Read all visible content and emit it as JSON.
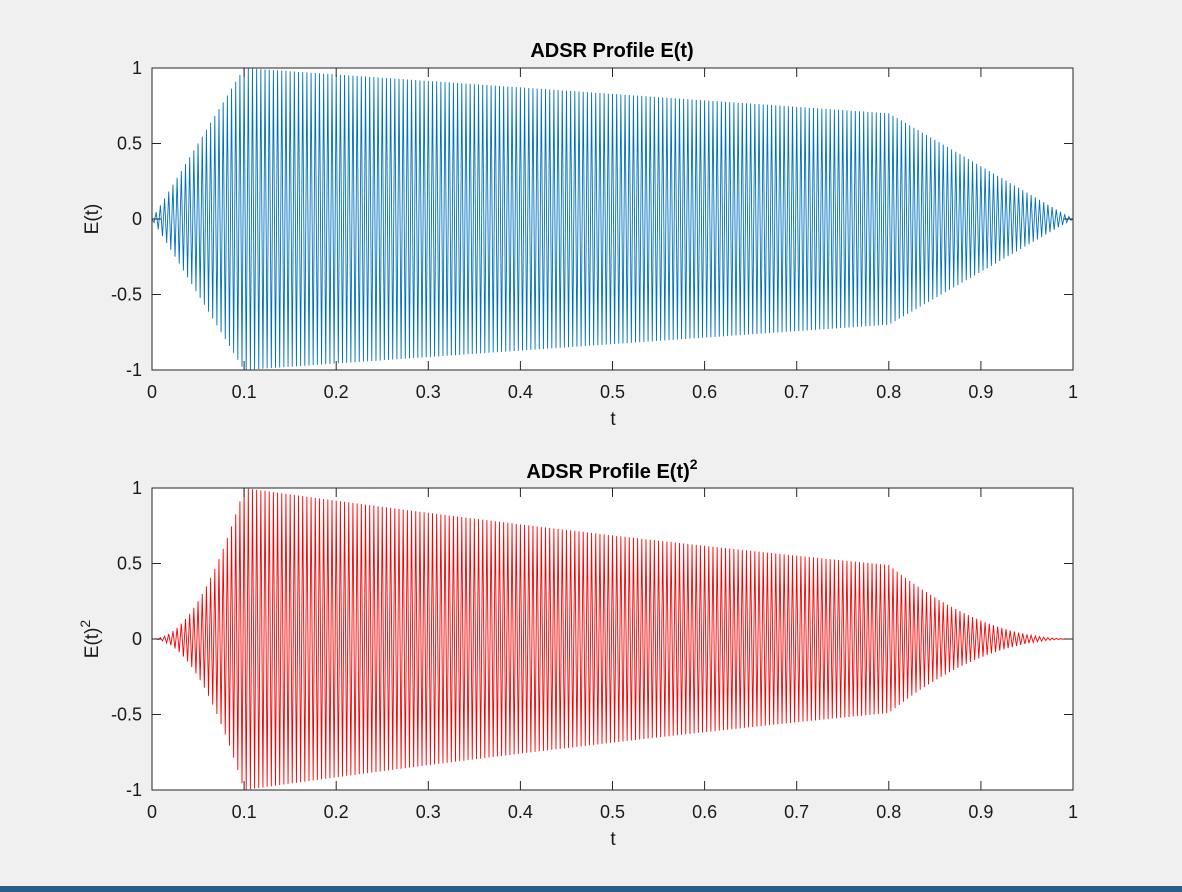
{
  "chart_data": [
    {
      "type": "line",
      "title": "ADSR Profile E(t)",
      "xlabel": "t",
      "ylabel": "E(t)",
      "xlim": [
        0,
        1
      ],
      "ylim": [
        -1,
        1
      ],
      "xticks": [
        "0",
        "0.1",
        "0.2",
        "0.3",
        "0.4",
        "0.5",
        "0.6",
        "0.7",
        "0.8",
        "0.9",
        "1"
      ],
      "yticks": [
        "1",
        "0.5",
        "0",
        "-0.5",
        "-1"
      ],
      "color": "#0072bd",
      "grid": false,
      "envelope": {
        "t": [
          0,
          0.1,
          0.8,
          1.0
        ],
        "amplitude": [
          0,
          1,
          0.7,
          0
        ],
        "power": 1
      },
      "oscillation_cycles": 220
    },
    {
      "type": "line",
      "title": "ADSR Profile E(t)",
      "title_superscript": "2",
      "xlabel": "t",
      "ylabel": "E(t)",
      "ylabel_superscript": "2",
      "xlim": [
        0,
        1
      ],
      "ylim": [
        -1,
        1
      ],
      "xticks": [
        "0",
        "0.1",
        "0.2",
        "0.3",
        "0.4",
        "0.5",
        "0.6",
        "0.7",
        "0.8",
        "0.9",
        "1"
      ],
      "yticks": [
        "1",
        "0.5",
        "0",
        "-0.5",
        "-1"
      ],
      "color": "#ff0000",
      "grid": false,
      "envelope": {
        "t": [
          0,
          0.1,
          0.8,
          1.0
        ],
        "amplitude": [
          0,
          1,
          0.7,
          0
        ],
        "power": 2
      },
      "oscillation_cycles": 220
    }
  ]
}
